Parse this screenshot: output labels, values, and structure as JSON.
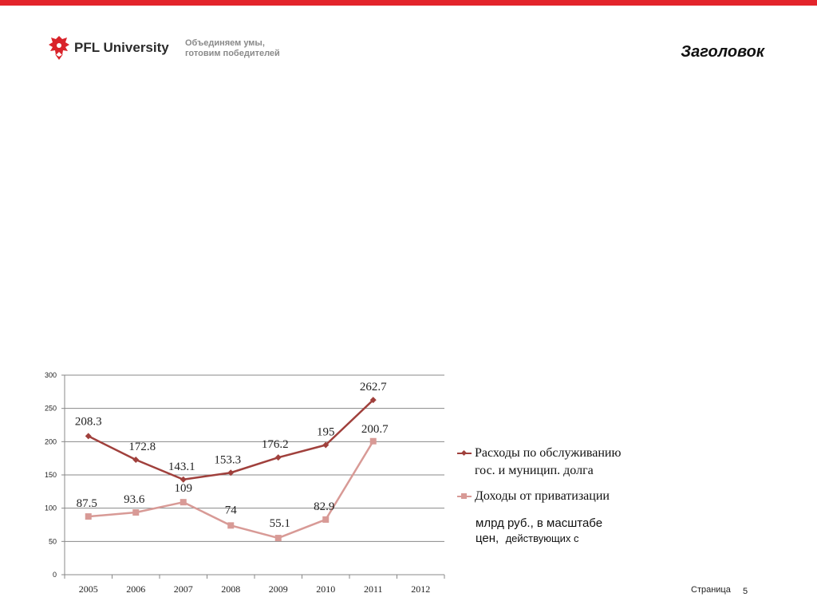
{
  "header": {
    "logo_text": "PFL University",
    "tagline_line1": "Объединяем умы,",
    "tagline_line2": "готовим победителей",
    "title": "Заголовок",
    "accent_color": "#e3242b"
  },
  "legend": {
    "series1_line1": "Расходы по обслуживанию",
    "series1_line2": "гос. и муницип. долга",
    "series2": "Доходы от приватизации"
  },
  "units": {
    "line1": "млрд руб., в масштабе",
    "line2a": "цен,",
    "line2b": "действующих с"
  },
  "footer": {
    "page_label": "Страница",
    "page_number": "5"
  },
  "chart_data": {
    "type": "line",
    "title": "",
    "xlabel": "",
    "ylabel": "",
    "categories": [
      "2005",
      "2006",
      "2007",
      "2008",
      "2009",
      "2010",
      "2011",
      "2012"
    ],
    "ylim": [
      0,
      300
    ],
    "yticks": [
      0,
      50,
      100,
      150,
      200,
      250,
      300
    ],
    "grid": true,
    "legend_position": "right",
    "series": [
      {
        "name": "Расходы по обслуживанию гос. и муницип. долга",
        "color": "#a0403c",
        "marker": "diamond",
        "values": [
          208.3,
          172.8,
          143.1,
          153.3,
          176.2,
          195,
          262.7,
          null
        ],
        "labels": [
          "208.3",
          "172.8",
          "143.1",
          "153.3",
          "176.2",
          "195",
          "262.7",
          ""
        ]
      },
      {
        "name": "Доходы от приватизации",
        "color": "#d89a96",
        "marker": "square",
        "values": [
          87.5,
          93.6,
          109,
          74,
          55.1,
          82.9,
          200.7,
          null
        ],
        "labels": [
          "87.5",
          "93.6",
          "109",
          "74",
          "55.1",
          "82.9",
          "200.7",
          ""
        ]
      }
    ]
  }
}
